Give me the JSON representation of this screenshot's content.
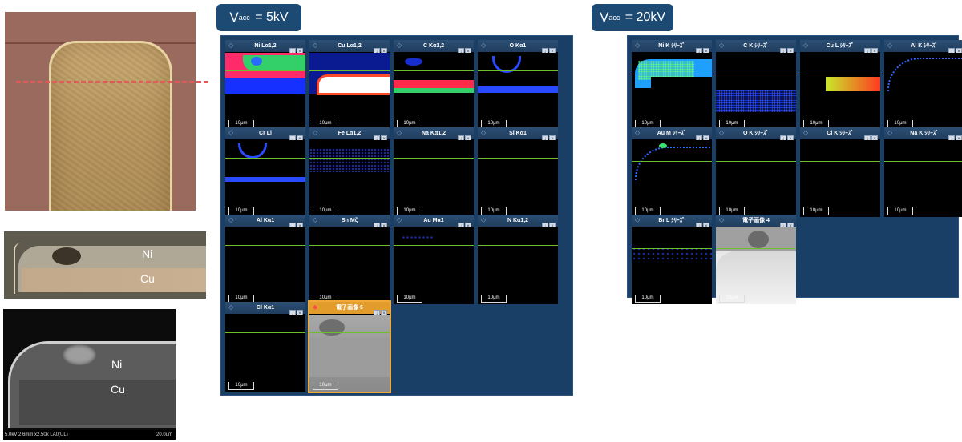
{
  "left_images": {
    "optical_cross": {
      "ni_label": "Ni",
      "cu_label": "Cu"
    },
    "sem_cross": {
      "ni_label": "Ni",
      "cu_label": "Cu",
      "databar_left": "5.0kV 2.6mm x2.50k LA0(UL)",
      "databar_right": "20.0um"
    }
  },
  "vacc_5kv": {
    "label": "V",
    "sub": "acc",
    "value": " = 5kV"
  },
  "vacc_20kv": {
    "label": "V",
    "sub": "acc",
    "value": " = 20kV"
  },
  "panel_5kv": {
    "tiles": [
      {
        "title": "Ni Lα1,2",
        "scale": "10μm"
      },
      {
        "title": "Cu Lα1,2",
        "scale": "10μm"
      },
      {
        "title": "C Kα1,2",
        "scale": "10μm"
      },
      {
        "title": "O Kα1",
        "scale": "10μm"
      },
      {
        "title": "Cr Ll",
        "scale": "10μm"
      },
      {
        "title": "Fe Lα1,2",
        "scale": "10μm"
      },
      {
        "title": "Na Kα1,2",
        "scale": "10μm"
      },
      {
        "title": "Si Kα1",
        "scale": "10μm"
      },
      {
        "title": "Al Kα1",
        "scale": "10μm"
      },
      {
        "title": "Sn Mζ",
        "scale": "10μm"
      },
      {
        "title": "Au Mα1",
        "scale": "10μm"
      },
      {
        "title": "N Kα1,2",
        "scale": "10μm"
      },
      {
        "title": "Cl Kα1",
        "scale": "10μm"
      },
      {
        "title": "電子画像 6",
        "scale": "10μm"
      }
    ]
  },
  "panel_20kv": {
    "tiles": [
      {
        "title": "Ni K ｼﾘｰｽﾞ",
        "scale": "10μm"
      },
      {
        "title": "C K ｼﾘｰｽﾞ",
        "scale": "10μm"
      },
      {
        "title": "Cu L ｼﾘｰｽﾞ",
        "scale": "10μm"
      },
      {
        "title": "Al K ｼﾘｰｽﾞ",
        "scale": "10μm"
      },
      {
        "title": "Au M ｼﾘｰｽﾞ",
        "scale": "10μm"
      },
      {
        "title": "O K ｼﾘｰｽﾞ",
        "scale": "10μm"
      },
      {
        "title": "Cl K ｼﾘｰｽﾞ",
        "scale": "10μm"
      },
      {
        "title": "Na K ｼﾘｰｽﾞ",
        "scale": "10μm"
      },
      {
        "title": "Br L ｼﾘｰｽﾞ",
        "scale": "10μm"
      },
      {
        "title": "電子画像 4",
        "scale": "10μm"
      }
    ]
  },
  "tile_buttons": {
    "download": "↓",
    "close": "×"
  },
  "icons": {
    "layer": "layers-icon",
    "electron_image": "electron-image-icon"
  },
  "colors": {
    "badge": "#1d4a73",
    "panel": "#1a3f66",
    "selected": "#e29c2c",
    "guide_line": "#6fbf2a"
  }
}
